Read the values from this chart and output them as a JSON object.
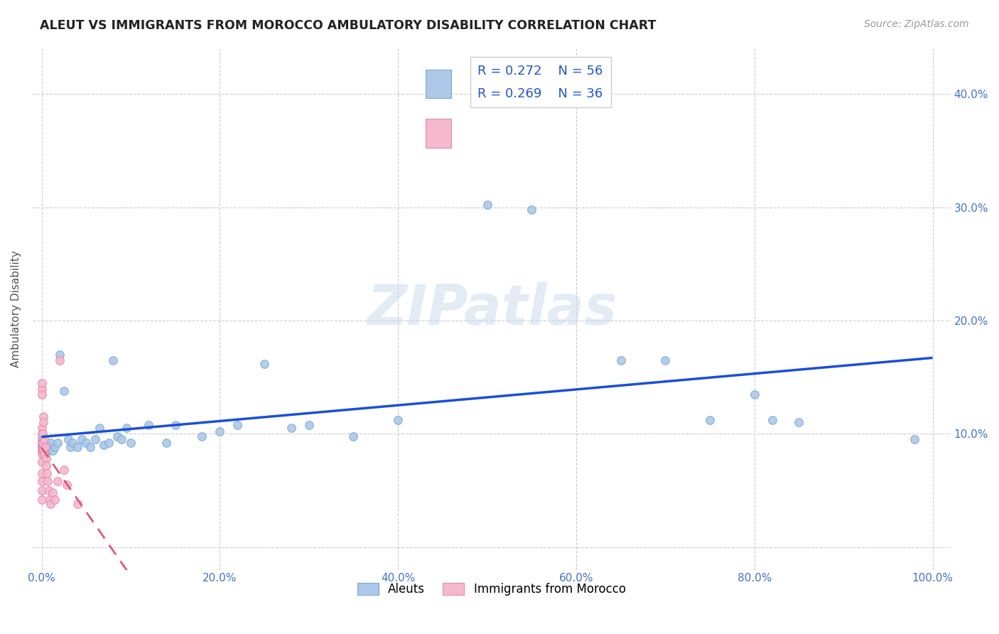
{
  "title": "ALEUT VS IMMIGRANTS FROM MOROCCO AMBULATORY DISABILITY CORRELATION CHART",
  "source": "Source: ZipAtlas.com",
  "ylabel": "Ambulatory Disability",
  "watermark": "ZIPatlas",
  "legend_r1": "R = 0.272",
  "legend_n1": "N = 56",
  "legend_r2": "R = 0.269",
  "legend_n2": "N = 36",
  "background_color": "#ffffff",
  "grid_color": "#cccccc",
  "aleut_color": "#adc8e8",
  "aleut_edge_color": "#7aaad4",
  "aleut_line_color": "#1a4fd6",
  "morocco_color": "#f5b8cc",
  "morocco_edge_color": "#e888aa",
  "morocco_line_color": "#e05878",
  "aleut_scatter": [
    [
      0.0,
      0.09
    ],
    [
      0.0,
      0.088
    ],
    [
      0.0,
      0.092
    ],
    [
      0.0,
      0.095
    ],
    [
      0.001,
      0.085
    ],
    [
      0.001,
      0.088
    ],
    [
      0.002,
      0.09
    ],
    [
      0.002,
      0.082
    ],
    [
      0.003,
      0.092
    ],
    [
      0.004,
      0.082
    ],
    [
      0.005,
      0.088
    ],
    [
      0.006,
      0.09
    ],
    [
      0.007,
      0.085
    ],
    [
      0.008,
      0.088
    ],
    [
      0.01,
      0.092
    ],
    [
      0.012,
      0.085
    ],
    [
      0.015,
      0.088
    ],
    [
      0.018,
      0.092
    ],
    [
      0.02,
      0.17
    ],
    [
      0.025,
      0.138
    ],
    [
      0.03,
      0.095
    ],
    [
      0.032,
      0.088
    ],
    [
      0.035,
      0.092
    ],
    [
      0.04,
      0.088
    ],
    [
      0.045,
      0.095
    ],
    [
      0.05,
      0.092
    ],
    [
      0.055,
      0.088
    ],
    [
      0.06,
      0.095
    ],
    [
      0.065,
      0.105
    ],
    [
      0.07,
      0.09
    ],
    [
      0.075,
      0.092
    ],
    [
      0.08,
      0.165
    ],
    [
      0.085,
      0.098
    ],
    [
      0.09,
      0.095
    ],
    [
      0.095,
      0.105
    ],
    [
      0.1,
      0.092
    ],
    [
      0.12,
      0.108
    ],
    [
      0.14,
      0.092
    ],
    [
      0.15,
      0.108
    ],
    [
      0.18,
      0.098
    ],
    [
      0.2,
      0.102
    ],
    [
      0.22,
      0.108
    ],
    [
      0.25,
      0.162
    ],
    [
      0.28,
      0.105
    ],
    [
      0.3,
      0.108
    ],
    [
      0.35,
      0.098
    ],
    [
      0.4,
      0.112
    ],
    [
      0.5,
      0.302
    ],
    [
      0.55,
      0.298
    ],
    [
      0.65,
      0.165
    ],
    [
      0.7,
      0.165
    ],
    [
      0.75,
      0.112
    ],
    [
      0.8,
      0.135
    ],
    [
      0.82,
      0.112
    ],
    [
      0.85,
      0.11
    ],
    [
      0.98,
      0.095
    ]
  ],
  "morocco_scatter": [
    [
      0.0,
      0.14
    ],
    [
      0.0,
      0.135
    ],
    [
      0.0,
      0.145
    ],
    [
      0.0,
      0.105
    ],
    [
      0.0,
      0.1
    ],
    [
      0.0,
      0.092
    ],
    [
      0.0,
      0.085
    ],
    [
      0.0,
      0.082
    ],
    [
      0.0,
      0.075
    ],
    [
      0.0,
      0.065
    ],
    [
      0.0,
      0.058
    ],
    [
      0.0,
      0.05
    ],
    [
      0.0,
      0.042
    ],
    [
      0.001,
      0.1
    ],
    [
      0.001,
      0.092
    ],
    [
      0.001,
      0.085
    ],
    [
      0.002,
      0.115
    ],
    [
      0.002,
      0.11
    ],
    [
      0.002,
      0.085
    ],
    [
      0.003,
      0.095
    ],
    [
      0.003,
      0.082
    ],
    [
      0.004,
      0.088
    ],
    [
      0.005,
      0.078
    ],
    [
      0.005,
      0.072
    ],
    [
      0.006,
      0.065
    ],
    [
      0.007,
      0.058
    ],
    [
      0.008,
      0.05
    ],
    [
      0.009,
      0.042
    ],
    [
      0.01,
      0.038
    ],
    [
      0.012,
      0.048
    ],
    [
      0.015,
      0.042
    ],
    [
      0.018,
      0.058
    ],
    [
      0.02,
      0.165
    ],
    [
      0.025,
      0.068
    ],
    [
      0.028,
      0.055
    ],
    [
      0.04,
      0.038
    ]
  ],
  "xlim": [
    -0.01,
    1.02
  ],
  "ylim": [
    -0.02,
    0.44
  ],
  "xticks": [
    0.0,
    0.2,
    0.4,
    0.6,
    0.8,
    1.0
  ],
  "yticks": [
    0.0,
    0.1,
    0.2,
    0.3,
    0.4
  ],
  "xtick_labels": [
    "0.0%",
    "20.0%",
    "40.0%",
    "60.0%",
    "80.0%",
    "100.0%"
  ],
  "ytick_labels_right": [
    "",
    "10.0%",
    "20.0%",
    "30.0%",
    "40.0%"
  ]
}
